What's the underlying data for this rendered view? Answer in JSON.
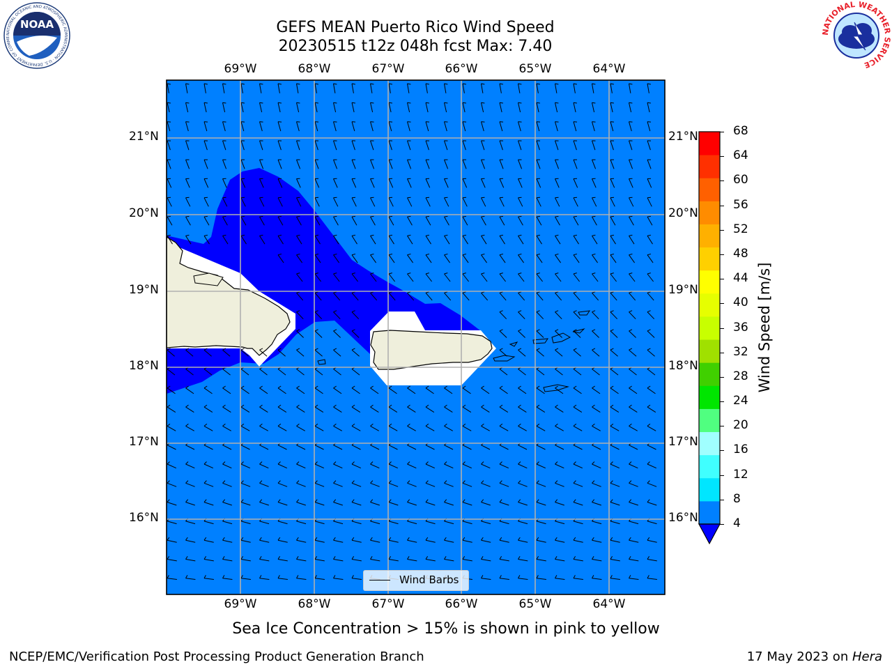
{
  "title": {
    "line1": "GEFS MEAN Puerto Rico Wind Speed",
    "line2": "20230515 t12z 048h fcst   Max: 7.40"
  },
  "map": {
    "lon_labels": [
      "69°W",
      "68°W",
      "67°W",
      "66°W",
      "65°W",
      "64°W"
    ],
    "lat_labels": [
      "21°N",
      "20°N",
      "19°N",
      "18°N",
      "17°N",
      "16°N"
    ],
    "projection_extent": {
      "lon": [
        -70.0,
        -63.25
      ],
      "lat": [
        15.0,
        21.75
      ]
    },
    "colors": {
      "ocean_fill": "#0080ff",
      "strong_wind_fill": "#0000ff",
      "land": "#efefdc",
      "grid": "#b0b0b0"
    },
    "legend_label": "Wind Barbs"
  },
  "colorbar": {
    "label": "Wind Speed [m/s]",
    "ticks": [
      "68",
      "64",
      "60",
      "56",
      "52",
      "48",
      "44",
      "40",
      "36",
      "32",
      "28",
      "24",
      "20",
      "16",
      "12",
      "8",
      "4"
    ],
    "levels": [
      4,
      8,
      12,
      16,
      20,
      24,
      28,
      32,
      36,
      40,
      44,
      48,
      52,
      56,
      60,
      64,
      68
    ],
    "colors": [
      "#0080ff",
      "#00e6ff",
      "#40ffff",
      "#a0ffff",
      "#50ff80",
      "#00e600",
      "#40d000",
      "#a0e000",
      "#c8ff00",
      "#e6ff00",
      "#ffff00",
      "#ffd000",
      "#ffb000",
      "#ff8c00",
      "#ff6000",
      "#ff3000",
      "#ff0000"
    ],
    "under_color": "#0000ff"
  },
  "subtitle": "Sea Ice Concentration > 15% is shown in pink to yellow",
  "footer": {
    "left": "NCEP/EMC/Verification Post Processing Product Generation Branch",
    "right_prefix": "17 May 2023 on ",
    "right_machine": "Hera"
  },
  "logos": {
    "noaa_text": "NOAA",
    "noaa_ring": "NATIONAL OCEANIC AND ATMOSPHERIC ADMINISTRATION · U.S. DEPARTMENT OF COMMERCE",
    "nws_ring": "NATIONAL WEATHER SERVICE"
  }
}
